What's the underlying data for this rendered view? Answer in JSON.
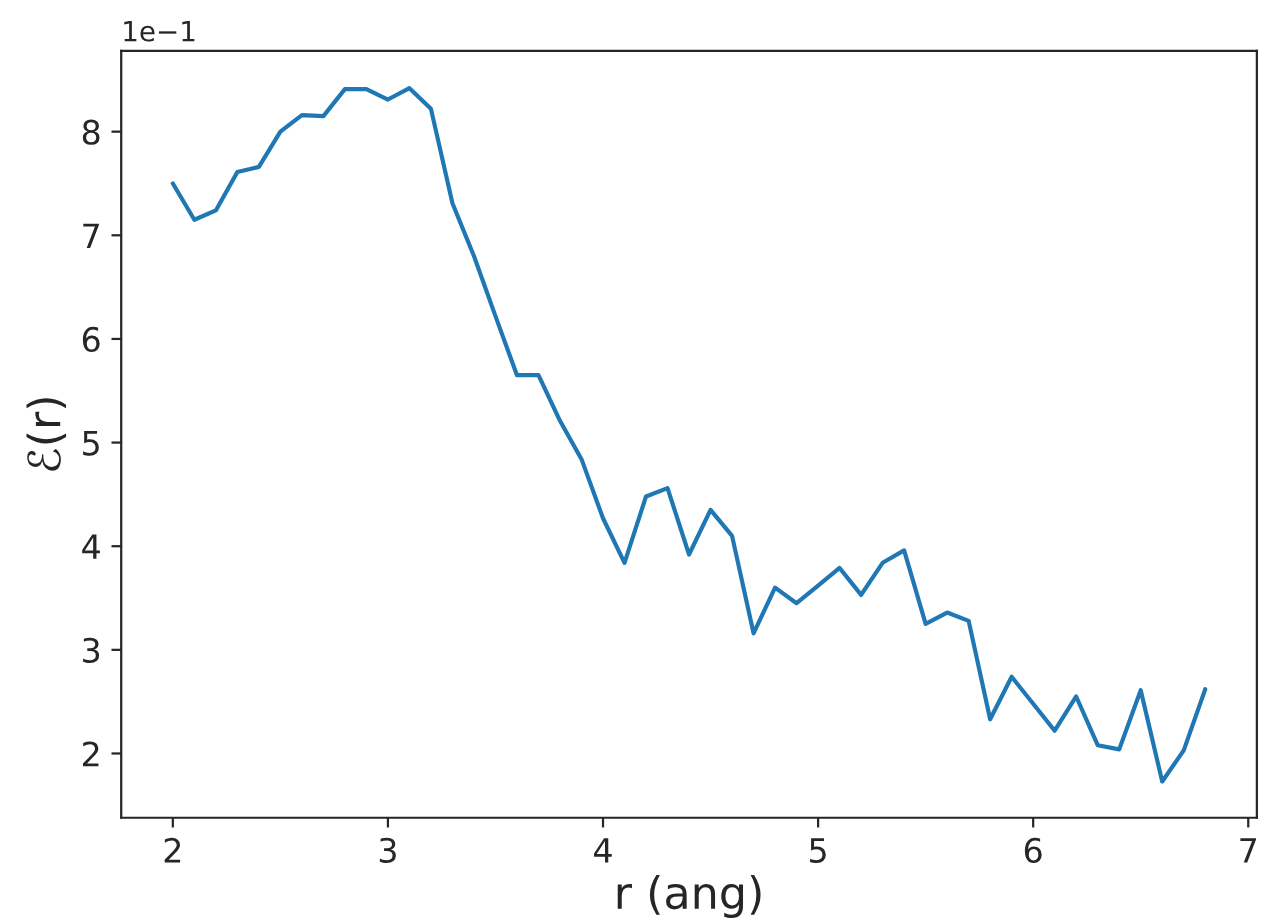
{
  "chart_data": {
    "type": "line",
    "xlabel": "r (ang)",
    "ylabel": "ℰ(r)",
    "x": [
      2.0,
      2.1,
      2.2,
      2.3,
      2.4,
      2.5,
      2.6,
      2.7,
      2.8,
      2.9,
      3.0,
      3.1,
      3.2,
      3.3,
      3.4,
      3.5,
      3.6,
      3.7,
      3.8,
      3.9,
      4.0,
      4.1,
      4.2,
      4.3,
      4.4,
      4.5,
      4.6,
      4.7,
      4.8,
      4.9,
      5.0,
      5.1,
      5.2,
      5.3,
      5.4,
      5.5,
      5.6,
      5.7,
      5.8,
      5.9,
      6.0,
      6.1,
      6.2,
      6.3,
      6.4,
      6.5,
      6.6,
      6.7,
      6.8
    ],
    "series": [
      {
        "color": "#1f77b4",
        "values": [
          7.5,
          7.15,
          7.24,
          7.61,
          7.66,
          8.0,
          8.16,
          8.15,
          8.41,
          8.41,
          8.31,
          8.42,
          8.22,
          7.31,
          6.8,
          6.22,
          5.65,
          5.65,
          5.21,
          4.84,
          4.27,
          3.84,
          4.48,
          4.56,
          3.92,
          4.35,
          4.1,
          3.16,
          3.6,
          3.45,
          3.62,
          3.79,
          3.53,
          3.84,
          3.96,
          3.25,
          3.36,
          3.28,
          2.33,
          2.74,
          2.48,
          2.22,
          2.55,
          2.08,
          2.04,
          2.61,
          1.73,
          2.03,
          2.62
        ]
      }
    ],
    "xlim": [
      1.76,
      7.04
    ],
    "ylim": [
      1.38,
      8.78
    ],
    "xticks": [
      2,
      3,
      4,
      5,
      6,
      7
    ],
    "yticks": [
      2,
      3,
      4,
      5,
      6,
      7,
      8
    ],
    "annotations": [
      "1e−1"
    ],
    "grid": false,
    "marker": "none",
    "line_style": "solid"
  }
}
